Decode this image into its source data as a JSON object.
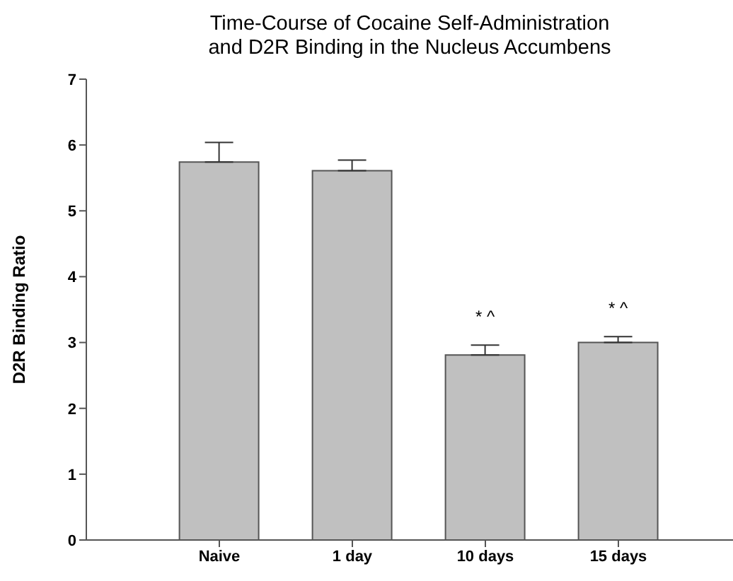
{
  "chart_data": {
    "type": "bar",
    "title": "Time-Course of Cocaine Self-Administration\nand D2R Binding in the Nucleus Accumbens",
    "ylabel": "D2R Binding Ratio",
    "categories": [
      "Naive",
      "1 day",
      "10 days",
      "15 days"
    ],
    "values": [
      5.74,
      5.61,
      2.81,
      3.0
    ],
    "errors": [
      [
        5.74,
        6.04
      ],
      [
        5.61,
        5.77
      ],
      [
        2.81,
        2.96
      ],
      [
        3.0,
        3.09
      ]
    ],
    "color": "#c0c0c0",
    "ylim": [
      0,
      7
    ],
    "yticks": [
      0,
      1,
      2,
      3,
      4,
      5,
      6,
      7
    ],
    "grid": false,
    "value_labels": [
      null,
      null,
      "* ^",
      "* ^"
    ]
  }
}
